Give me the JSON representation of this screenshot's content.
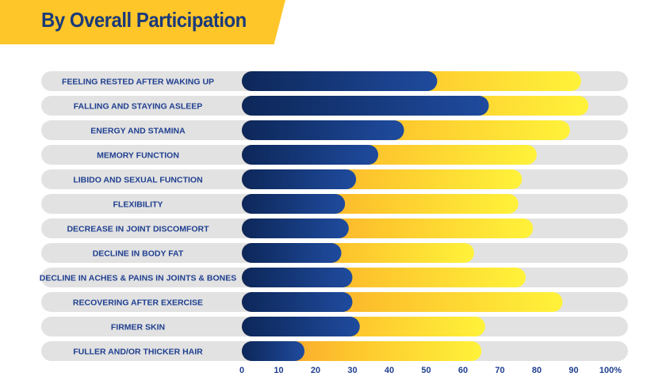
{
  "title": "By Overall Participation",
  "colors": {
    "banner": "#ffc629",
    "title_text": "#1a3a7a",
    "track": "#e2e2e2",
    "navy_start": "#0d2759",
    "navy_end": "#1f4b9e",
    "gold_start": "#f7962f",
    "gold_mid": "#fdc52d",
    "gold_end": "#fff23a",
    "label": "#1f3f8f"
  },
  "chart_data": {
    "type": "bar",
    "orientation": "horizontal",
    "stacked": true,
    "categories": [
      "FEELING RESTED AFTER WAKING UP",
      "FALLING AND STAYING ASLEEP",
      "ENERGY AND STAMINA",
      "MEMORY FUNCTION",
      "LIBIDO AND SEXUAL FUNCTION",
      "FLEXIBILITY",
      "DECREASE IN JOINT DISCOMFORT",
      "DECLINE IN BODY FAT",
      "DECLINE IN ACHES & PAINS IN JOINTS & BONES",
      "RECOVERING AFTER EXERCISE",
      "FIRMER SKIN",
      "FULLER AND/OR THICKER HAIR"
    ],
    "series": [
      {
        "values": [
          53,
          67,
          44,
          37,
          31,
          28,
          29,
          27,
          30,
          30,
          32,
          17
        ]
      },
      {
        "values": [
          39,
          27,
          45,
          43,
          45,
          47,
          50,
          36,
          47,
          57,
          34,
          48
        ]
      }
    ],
    "xlim": [
      0,
      100
    ],
    "xticks": [
      "0",
      "10",
      "20",
      "30",
      "40",
      "50",
      "60",
      "70",
      "80",
      "90",
      "100%"
    ],
    "grid": false
  }
}
